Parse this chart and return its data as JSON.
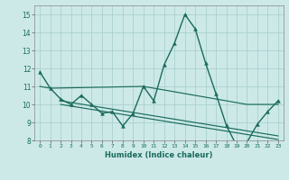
{
  "xlabel": "Humidex (Indice chaleur)",
  "ylabel": "",
  "background_color": "#cce9e8",
  "grid_color": "#aad0ce",
  "line_color": "#1a6b5a",
  "xlim": [
    -0.5,
    23.5
  ],
  "ylim": [
    8,
    15.5
  ],
  "yticks": [
    8,
    9,
    10,
    11,
    12,
    13,
    14,
    15
  ],
  "xtick_labels": [
    "0",
    "1",
    "2",
    "3",
    "4",
    "5",
    "6",
    "7",
    "8",
    "9",
    "10",
    "11",
    "12",
    "13",
    "14",
    "15",
    "16",
    "17",
    "18",
    "19",
    "20",
    "21",
    "22",
    "23"
  ],
  "main_series_x": [
    0,
    1,
    2,
    3,
    4,
    5,
    6,
    7,
    8,
    9,
    10,
    11,
    12,
    13,
    14,
    15,
    16,
    17,
    18,
    19,
    20,
    21,
    22,
    23
  ],
  "main_series_y": [
    11.8,
    10.9,
    10.3,
    10.0,
    10.5,
    10.0,
    9.5,
    9.6,
    8.8,
    9.5,
    11.0,
    10.2,
    12.2,
    13.4,
    15.0,
    14.2,
    12.3,
    10.6,
    8.85,
    7.7,
    7.9,
    8.9,
    9.6,
    10.2
  ],
  "line1_x": [
    0,
    1,
    10,
    20,
    23
  ],
  "line1_y": [
    11.0,
    10.9,
    11.0,
    10.0,
    10.0
  ],
  "line2_x": [
    2,
    23
  ],
  "line2_y": [
    10.2,
    8.25
  ],
  "line3_x": [
    2,
    23
  ],
  "line3_y": [
    10.0,
    8.05
  ]
}
